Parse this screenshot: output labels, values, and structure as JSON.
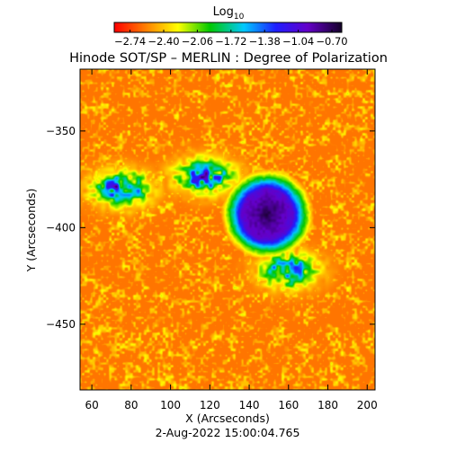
{
  "chart_data": {
    "type": "heatmap",
    "title": "Hinode SOT/SP – MERLIN : Degree of Polarization",
    "xlabel": "X (Arcseconds)",
    "ylabel": "Y (Arcseconds)",
    "date_label": "2-Aug-2022 15:00:04.765",
    "xlim": [
      54,
      204
    ],
    "ylim": [
      -484,
      -318
    ],
    "x_ticks": [
      60,
      80,
      100,
      120,
      140,
      160,
      180,
      200
    ],
    "x_tick_labels": [
      "60",
      "80",
      "100",
      "120",
      "140",
      "160",
      "180",
      "200"
    ],
    "y_ticks": [
      -350,
      -400,
      -450
    ],
    "y_tick_labels": [
      "−350",
      "−400",
      "−450"
    ],
    "colorbar": {
      "label": "Log",
      "label_subscript": "10",
      "range": [
        -2.9,
        -0.6
      ],
      "ticks": [
        -2.74,
        -2.4,
        -2.06,
        -1.72,
        -1.38,
        -1.04,
        -0.7
      ],
      "tick_labels": [
        "−2.74",
        "−2.40",
        "−2.06",
        "−1.72",
        "−1.38",
        "−1.04",
        "−0.70"
      ],
      "colors": [
        "#ff0000",
        "#ff8000",
        "#ffff00",
        "#00c800",
        "#00c8ff",
        "#1e1eff",
        "#6400c8",
        "#140028"
      ]
    },
    "features": [
      {
        "name": "sunspot-umbra",
        "x": 149,
        "y": -393,
        "radius": 8,
        "value": -0.7
      },
      {
        "name": "sunspot-penumbra",
        "x": 149,
        "y": -393,
        "radius": 18,
        "value": -1.1
      },
      {
        "name": "plage-north-west",
        "x": 75,
        "y": -380,
        "value": -1.0
      },
      {
        "name": "plage-north",
        "x": 117,
        "y": -373,
        "value": -1.0
      },
      {
        "name": "plage-east-patch",
        "x": 160,
        "y": -422,
        "value": -1.2
      }
    ],
    "background_value": -2.6
  }
}
